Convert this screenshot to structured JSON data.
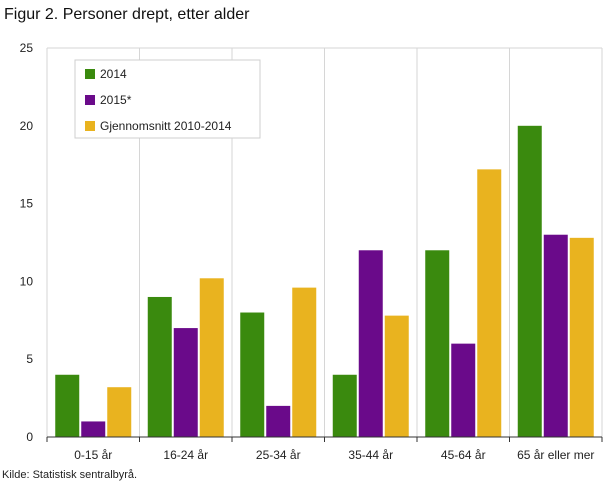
{
  "figure": {
    "title": "Figur 2. Personer drept, etter alder",
    "source": "Kilde: Statistisk sentralbyrå."
  },
  "chart_data": {
    "type": "bar",
    "title": "Figur 2. Personer drept, etter alder",
    "xlabel": "",
    "ylabel": "",
    "categories": [
      "0-15 år",
      "16-24 år",
      "25-34 år",
      "35-44 år",
      "45-64 år",
      "65 år eller mer"
    ],
    "series": [
      {
        "name": "2014",
        "color": "#3a8a0e",
        "values": [
          4,
          9,
          8,
          4,
          12,
          20
        ]
      },
      {
        "name": "2015*",
        "color": "#6a0a8a",
        "values": [
          1,
          7,
          2,
          12,
          6,
          13
        ]
      },
      {
        "name": "Gjennomsnitt 2010-2014",
        "color": "#e9b31f",
        "values": [
          3.2,
          10.2,
          9.6,
          7.8,
          17.2,
          12.8
        ]
      }
    ],
    "ylim": [
      0,
      25
    ],
    "yticks": [
      "0",
      "5",
      "10",
      "15",
      "20",
      "25"
    ],
    "grid": "vertical category separators",
    "legend_position": "top-left"
  }
}
